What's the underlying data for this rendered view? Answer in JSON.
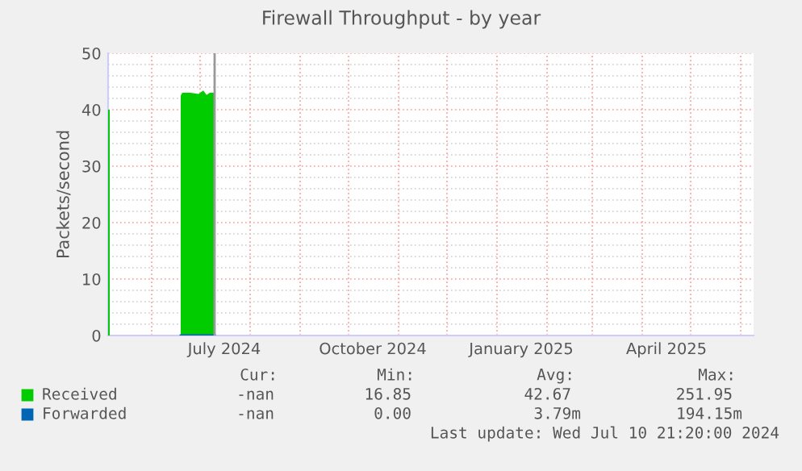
{
  "chart_data": {
    "type": "area",
    "title": "Firewall Throughput - by year",
    "ylabel": "Packets/second",
    "x": [
      "2024-05-05",
      "2024-05-06",
      "2024-05-07",
      "2024-06-19",
      "2024-06-20",
      "2024-06-25",
      "2024-06-30",
      "2024-07-03",
      "2024-07-05",
      "2024-07-07",
      "2024-07-10"
    ],
    "series": [
      {
        "name": "Received",
        "color": "#00cc00",
        "values": [
          40,
          40,
          null,
          42.5,
          43,
          43,
          42.8,
          43.4,
          42.6,
          43,
          43
        ]
      },
      {
        "name": "Forwarded",
        "color": "#0066b3",
        "type": "line",
        "values": [
          null,
          null,
          null,
          0,
          0,
          0,
          0,
          0,
          0,
          0,
          0
        ]
      }
    ],
    "xlim": [
      "2024-05-05",
      "2025-06-09"
    ],
    "xticks": [
      {
        "value": "2024-07-16",
        "label": "July 2024"
      },
      {
        "value": "2024-10-16",
        "label": "October 2024"
      },
      {
        "value": "2025-01-16",
        "label": "January 2025"
      },
      {
        "value": "2025-04-16",
        "label": "April 2025"
      }
    ],
    "ylim": [
      0,
      50
    ],
    "yticks": [
      0,
      10,
      20,
      30,
      40,
      50
    ],
    "ref_lines": [
      {
        "axis": "x",
        "value": "2024-07-10",
        "color": "#999999"
      }
    ],
    "grid": true,
    "legend": "bottom",
    "annotations": [
      "Cur:",
      "Min:",
      "Avg:",
      "Max:",
      "-nan",
      "16.85",
      "42.67",
      "251.95",
      "-nan",
      "0.00",
      "3.79m",
      "194.15m",
      "Last update: Wed Jul 10 21:20:00 2024"
    ]
  }
}
